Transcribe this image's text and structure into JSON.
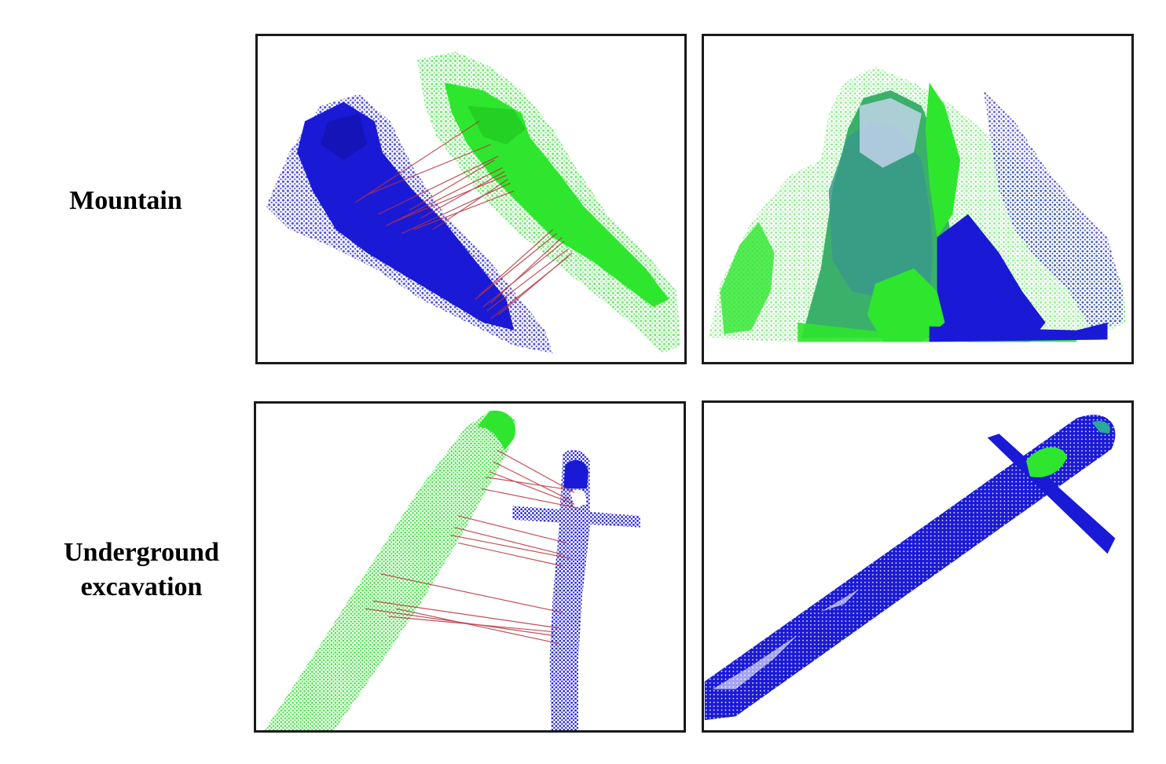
{
  "rows": [
    {
      "label": "Mountain"
    },
    {
      "label": "Underground\nexcavation"
    }
  ],
  "colors": {
    "blue_cloud": "#1a1ad6",
    "green_cloud": "#2ee62e",
    "correspondence_lines": "#b8303a",
    "border": "#1a1a1a"
  }
}
